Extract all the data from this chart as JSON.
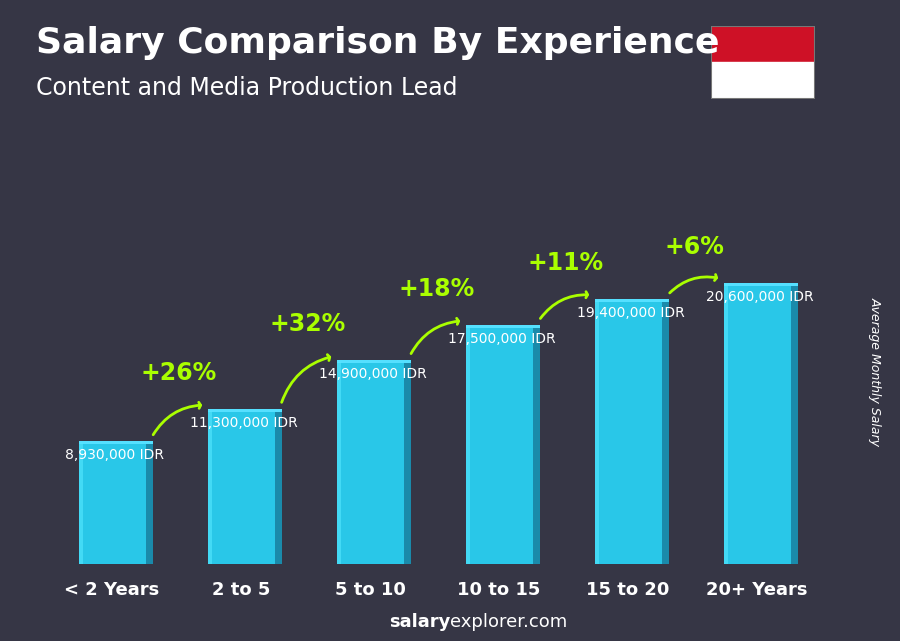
{
  "title": "Salary Comparison By Experience",
  "subtitle": "Content and Media Production Lead",
  "categories": [
    "< 2 Years",
    "2 to 5",
    "5 to 10",
    "10 to 15",
    "15 to 20",
    "20+ Years"
  ],
  "values": [
    8930000,
    11300000,
    14900000,
    17500000,
    19400000,
    20600000
  ],
  "value_labels": [
    "8,930,000 IDR",
    "11,300,000 IDR",
    "14,900,000 IDR",
    "17,500,000 IDR",
    "19,400,000 IDR",
    "20,600,000 IDR"
  ],
  "pct_labels": [
    "+26%",
    "+32%",
    "+18%",
    "+11%",
    "+6%"
  ],
  "bar_color_main": "#29c7e8",
  "bar_color_side": "#1a8aaa",
  "bar_color_top": "#55e0ff",
  "bar_color_left": "#55e8ff",
  "pct_color": "#aaff00",
  "text_color": "#ffffff",
  "ylabel": "Average Monthly Salary",
  "website_bold": "salary",
  "website_normal": "explorer.com",
  "bg_color": "#363645",
  "title_fontsize": 26,
  "subtitle_fontsize": 17,
  "category_fontsize": 13,
  "value_fontsize": 10,
  "pct_fontsize": 17,
  "flag_red": "#CE1126",
  "flag_white": "#FFFFFF"
}
